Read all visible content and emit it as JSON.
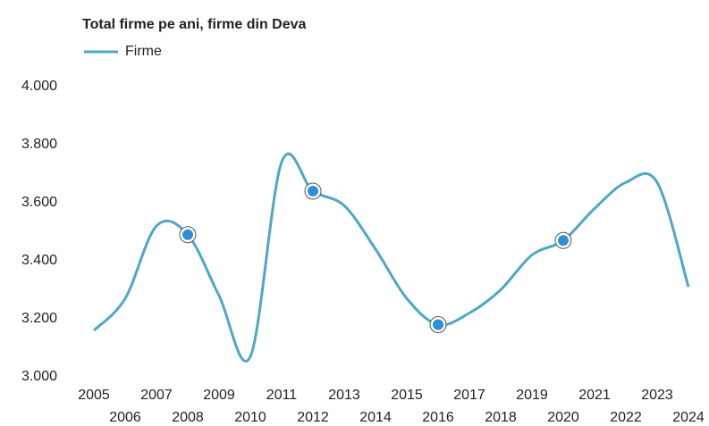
{
  "chart_data": {
    "type": "line",
    "title": "Total firme pe ani, firme din Deva",
    "categories": [
      "2005",
      "2006",
      "2007",
      "2008",
      "2009",
      "2010",
      "2011",
      "2012",
      "2013",
      "2014",
      "2015",
      "2016",
      "2017",
      "2018",
      "2019",
      "2020",
      "2021",
      "2022",
      "2023",
      "2024"
    ],
    "series": [
      {
        "name": "Firme",
        "color": "#4ea6c9",
        "values": [
          3160,
          3270,
          3520,
          3490,
          3280,
          3070,
          3740,
          3640,
          3590,
          3440,
          3270,
          3180,
          3220,
          3300,
          3420,
          3470,
          3580,
          3670,
          3670,
          3310
        ]
      }
    ],
    "marker_indices": [
      3,
      7,
      11,
      15
    ],
    "ylim": [
      3000,
      4000
    ],
    "yticks": [
      {
        "value": 3000,
        "label": "3.000"
      },
      {
        "value": 3200,
        "label": "3.200"
      },
      {
        "value": 3400,
        "label": "3.400"
      },
      {
        "value": 3600,
        "label": "3.600"
      },
      {
        "value": 3800,
        "label": "3.800"
      },
      {
        "value": 4000,
        "label": "4.000"
      }
    ],
    "grid": false
  }
}
